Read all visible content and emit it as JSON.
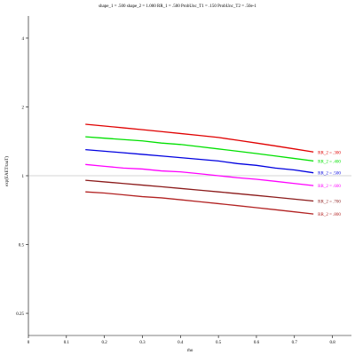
{
  "chart_data": {
    "type": "line",
    "title": "shape_1 = .500  shape_2 = 1.000  RR_1 = .500  ProbUnc_T1 = .150  ProbUnc_T2 = .50e-1",
    "xlabel": "rho",
    "ylabel": "exp(EAET/tauT)",
    "xlim": [
      0,
      0.85
    ],
    "ylim": [
      0.2,
      5
    ],
    "y_scale": "log",
    "x_ticks": [
      {
        "value": 0,
        "label": "0"
      },
      {
        "value": 0.1,
        "label": "0.1"
      },
      {
        "value": 0.2,
        "label": "0.2"
      },
      {
        "value": 0.3,
        "label": "0.3"
      },
      {
        "value": 0.4,
        "label": "0.4"
      },
      {
        "value": 0.5,
        "label": "0.5"
      },
      {
        "value": 0.6,
        "label": "0.6"
      },
      {
        "value": 0.7,
        "label": "0.7"
      },
      {
        "value": 0.8,
        "label": "0.8"
      }
    ],
    "y_ticks": [
      {
        "value": 0.25,
        "label": "0.25"
      },
      {
        "value": 0.5,
        "label": "0.5"
      },
      {
        "value": 1,
        "label": "1"
      },
      {
        "value": 2,
        "label": "2"
      },
      {
        "value": 4,
        "label": "4"
      }
    ],
    "reference_line": 1,
    "grid": false,
    "x": [
      0.15,
      0.2,
      0.25,
      0.3,
      0.35,
      0.4,
      0.45,
      0.5,
      0.55,
      0.6,
      0.65,
      0.7,
      0.75
    ],
    "series": [
      {
        "name": "RR_2 = .300",
        "color": "#e00000",
        "values": [
          1.68,
          1.65,
          1.62,
          1.59,
          1.56,
          1.53,
          1.5,
          1.47,
          1.43,
          1.39,
          1.35,
          1.31,
          1.27
        ]
      },
      {
        "name": "RR_2 = .400",
        "color": "#00e000",
        "values": [
          1.48,
          1.46,
          1.44,
          1.42,
          1.39,
          1.37,
          1.34,
          1.31,
          1.28,
          1.25,
          1.22,
          1.19,
          1.16
        ]
      },
      {
        "name": "RR_2 = .500",
        "color": "#0000e0",
        "values": [
          1.3,
          1.28,
          1.26,
          1.24,
          1.22,
          1.2,
          1.18,
          1.16,
          1.13,
          1.11,
          1.08,
          1.06,
          1.03
        ]
      },
      {
        "name": "RR_2 = .600",
        "color": "#ff00ff",
        "values": [
          1.12,
          1.1,
          1.08,
          1.07,
          1.05,
          1.04,
          1.02,
          1.0,
          0.98,
          0.965,
          0.945,
          0.925,
          0.905
        ]
      },
      {
        "name": "RR_2 = .700",
        "color": "#8b1a1a",
        "values": [
          0.955,
          0.94,
          0.925,
          0.91,
          0.895,
          0.88,
          0.865,
          0.85,
          0.835,
          0.82,
          0.805,
          0.79,
          0.775
        ]
      },
      {
        "name": "RR_2 = .800",
        "color": "#b22222",
        "values": [
          0.85,
          0.84,
          0.825,
          0.81,
          0.8,
          0.785,
          0.77,
          0.755,
          0.74,
          0.725,
          0.71,
          0.695,
          0.68
        ]
      }
    ]
  }
}
